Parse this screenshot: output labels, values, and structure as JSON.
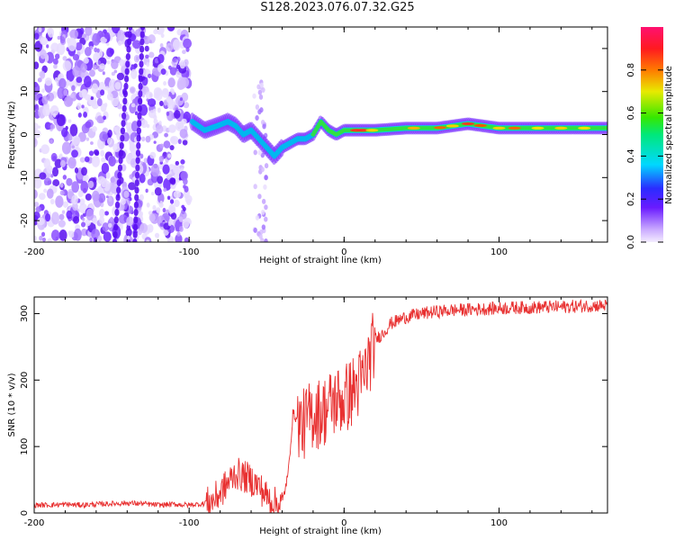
{
  "title": "S128.2023.076.07.32.G25",
  "chart_data": [
    {
      "type": "heatmap",
      "xlabel": "Height of straight line (km)",
      "ylabel": "Frequency (Hz)",
      "xlim": [
        -200,
        170
      ],
      "ylim": [
        -25,
        25
      ],
      "x_ticks": [
        -200,
        -100,
        0,
        100
      ],
      "y_ticks": [
        20,
        10,
        0,
        -10,
        -20
      ],
      "colorbar": {
        "label": "Normalized spectral amplitude",
        "range": [
          0,
          1
        ],
        "ticks": [
          "0.0",
          "0.2",
          "0.4",
          "0.6",
          "0.8"
        ]
      },
      "signal_trace": {
        "x": [
          -98,
          -90,
          -82,
          -75,
          -70,
          -65,
          -60,
          -55,
          -50,
          -45,
          -40,
          -35,
          -30,
          -25,
          -20,
          -15,
          -10,
          -5,
          0,
          10,
          20,
          40,
          60,
          80,
          90,
          100,
          120,
          140,
          170
        ],
        "y": [
          3,
          1,
          2,
          3,
          2,
          0,
          1,
          -1,
          -3,
          -5,
          -3,
          -2,
          -1,
          -1,
          0,
          3,
          1,
          0,
          1,
          1,
          1,
          1.5,
          1.5,
          2.5,
          2,
          1.5,
          1.5,
          1.5,
          1.5
        ]
      },
      "grid": false
    },
    {
      "type": "line",
      "xlabel": "Height of straight line (km)",
      "ylabel": "SNR (10 * v/v)",
      "xlim": [
        -200,
        170
      ],
      "ylim": [
        0,
        325
      ],
      "x_ticks": [
        -200,
        -100,
        0,
        100
      ],
      "y_ticks": [
        0,
        100,
        200,
        300
      ],
      "series": [
        {
          "color": "#e83030",
          "x": [
            -200,
            -190,
            -180,
            -170,
            -160,
            -150,
            -140,
            -130,
            -120,
            -110,
            -100,
            -90,
            -85,
            -80,
            -75,
            -70,
            -65,
            -60,
            -55,
            -50,
            -45,
            -40,
            -36,
            -33,
            -30,
            -27,
            -24,
            -20,
            -16,
            -12,
            -8,
            -4,
            0,
            4,
            8,
            12,
            16,
            20,
            25,
            30,
            35,
            40,
            50,
            60,
            70,
            80,
            90,
            100,
            110,
            120,
            130,
            140,
            150,
            160,
            170
          ],
          "y": [
            12,
            12,
            13,
            12,
            13,
            14,
            15,
            14,
            12,
            13,
            12,
            14,
            18,
            30,
            45,
            60,
            55,
            50,
            40,
            25,
            15,
            14,
            60,
            150,
            140,
            130,
            140,
            150,
            150,
            155,
            165,
            170,
            170,
            180,
            190,
            200,
            230,
            260,
            270,
            285,
            290,
            295,
            300,
            303,
            305,
            306,
            307,
            308,
            309,
            309,
            310,
            310,
            311,
            312,
            312
          ]
        }
      ],
      "grid": false
    }
  ]
}
